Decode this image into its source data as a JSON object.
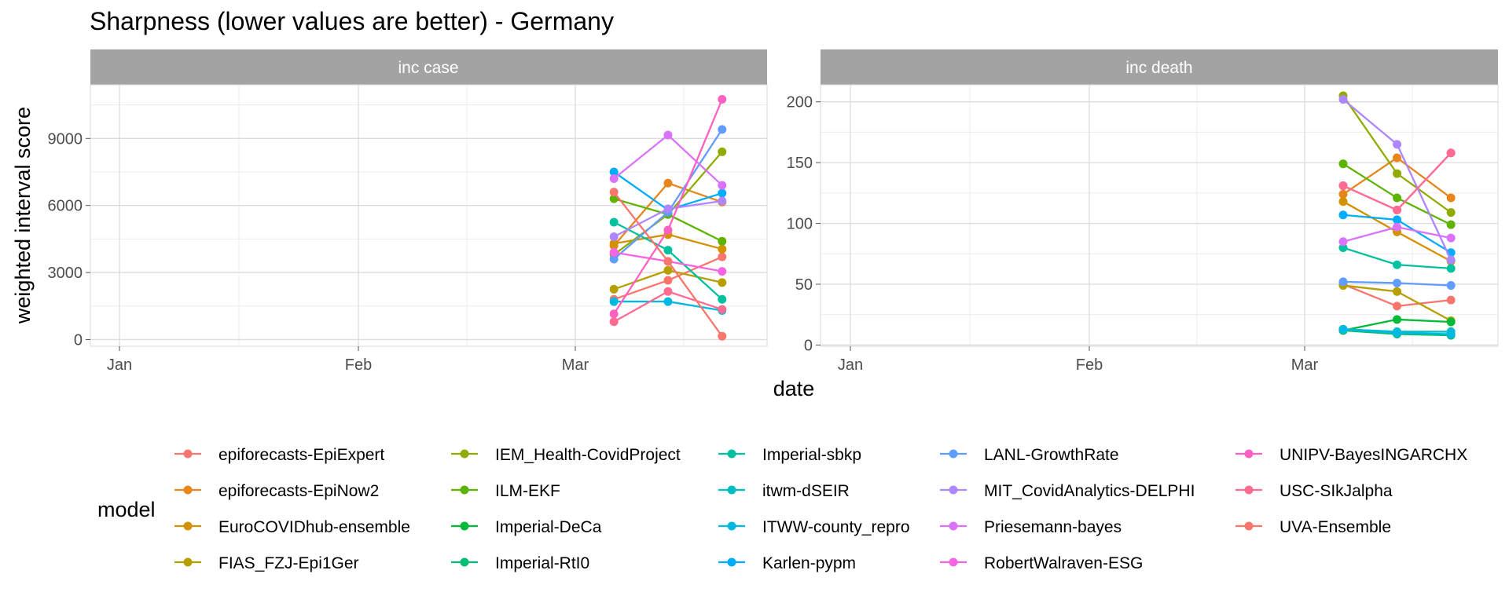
{
  "chart_data": {
    "type": "line",
    "title": "Sharpness (lower values are better) - Germany",
    "xlabel": "date",
    "ylabel": "weighted interval score",
    "x_ticks": [
      "Jan",
      "Feb",
      "Mar"
    ],
    "x_dates": [
      "2021-03-06",
      "2021-03-13",
      "2021-03-20"
    ],
    "legend_title": "model",
    "legend_position": "bottom",
    "grid": true,
    "models": [
      {
        "name": "epiforecasts-EpiExpert",
        "color": "#F8766D"
      },
      {
        "name": "epiforecasts-EpiNow2",
        "color": "#E7861B"
      },
      {
        "name": "EuroCOVIDhub-ensemble",
        "color": "#D39200"
      },
      {
        "name": "FIAS_FZJ-Epi1Ger",
        "color": "#B79F00"
      },
      {
        "name": "IEM_Health-CovidProject",
        "color": "#93AA00"
      },
      {
        "name": "ILM-EKF",
        "color": "#5EB300"
      },
      {
        "name": "Imperial-DeCa",
        "color": "#00BA38"
      },
      {
        "name": "Imperial-RtI0",
        "color": "#00BF74"
      },
      {
        "name": "Imperial-sbkp",
        "color": "#00C19F"
      },
      {
        "name": "itwm-dSEIR",
        "color": "#00BFC4"
      },
      {
        "name": "ITWW-county_repro",
        "color": "#00B9E3"
      },
      {
        "name": "Karlen-pypm",
        "color": "#00ADFA"
      },
      {
        "name": "LANL-GrowthRate",
        "color": "#619CFF"
      },
      {
        "name": "MIT_CovidAnalytics-DELPHI",
        "color": "#AE87FF"
      },
      {
        "name": "Priesemann-bayes",
        "color": "#DB72FB"
      },
      {
        "name": "RobertWalraven-ESG",
        "color": "#F564E3"
      },
      {
        "name": "UNIPV-BayesINGARCHX",
        "color": "#FF61C3"
      },
      {
        "name": "USC-SIkJalpha",
        "color": "#FF6C91"
      },
      {
        "name": "UVA-Ensemble",
        "color": "#F8766D"
      }
    ],
    "panels": [
      {
        "label": "inc case",
        "ylim": [
          -300,
          11400
        ],
        "y_ticks": [
          0,
          3000,
          6000,
          9000
        ],
        "y_tick_labels": [
          "0",
          "3000",
          "6000",
          "9000"
        ],
        "series": [
          {
            "model": "epiforecasts-EpiExpert",
            "values": [
              1800,
              2650,
              3700
            ]
          },
          {
            "model": "epiforecasts-EpiNow2",
            "values": [
              4200,
              7000,
              6150
            ]
          },
          {
            "model": "EuroCOVIDhub-ensemble",
            "values": [
              4300,
              4700,
              4050
            ]
          },
          {
            "model": "FIAS_FZJ-Epi1Ger",
            "values": [
              2250,
              3100,
              2550
            ]
          },
          {
            "model": "IEM_Health-CovidProject",
            "values": [
              3800,
              5600,
              8400
            ]
          },
          {
            "model": "ILM-EKF",
            "values": [
              6300,
              5600,
              4400
            ]
          },
          {
            "model": "Imperial-sbkp",
            "values": [
              5250,
              4000,
              1800
            ]
          },
          {
            "model": "ITWW-county_repro",
            "values": [
              1700,
              1700,
              1300
            ]
          },
          {
            "model": "Karlen-pypm",
            "values": [
              7500,
              5800,
              6550
            ]
          },
          {
            "model": "LANL-GrowthRate",
            "values": [
              3600,
              5700,
              9400
            ]
          },
          {
            "model": "MIT_CovidAnalytics-DELPHI",
            "values": [
              4600,
              5850,
              6200
            ]
          },
          {
            "model": "Priesemann-bayes",
            "values": [
              7200,
              9150,
              6900
            ]
          },
          {
            "model": "RobertWalraven-ESG",
            "values": [
              3900,
              3500,
              3050
            ]
          },
          {
            "model": "UNIPV-BayesINGARCHX",
            "values": [
              1150,
              4900,
              10750
            ]
          },
          {
            "model": "USC-SIkJalpha",
            "values": [
              800,
              2150,
              1350
            ]
          },
          {
            "model": "UVA-Ensemble",
            "values": [
              6600,
              3500,
              150
            ]
          }
        ]
      },
      {
        "label": "inc death",
        "ylim": [
          -1,
          214
        ],
        "y_ticks": [
          0,
          50,
          100,
          150,
          200
        ],
        "y_tick_labels": [
          "0",
          "50",
          "100",
          "150",
          "200"
        ],
        "series": [
          {
            "model": "epiforecasts-EpiExpert",
            "values": [
              50,
              32,
              37
            ]
          },
          {
            "model": "epiforecasts-EpiNow2",
            "values": [
              124,
              154,
              121
            ]
          },
          {
            "model": "EuroCOVIDhub-ensemble",
            "values": [
              118,
              93,
              69
            ]
          },
          {
            "model": "FIAS_FZJ-Epi1Ger",
            "values": [
              49,
              44,
              20
            ]
          },
          {
            "model": "IEM_Health-CovidProject",
            "values": [
              205,
              141,
              109
            ]
          },
          {
            "model": "ILM-EKF",
            "values": [
              149,
              121,
              99
            ]
          },
          {
            "model": "Imperial-DeCa",
            "values": [
              12,
              21,
              19
            ]
          },
          {
            "model": "Imperial-RtI0",
            "values": [
              12,
              9,
              8
            ]
          },
          {
            "model": "Imperial-sbkp",
            "values": [
              80,
              66,
              63
            ]
          },
          {
            "model": "itwm-dSEIR",
            "values": [
              13,
              11,
              11
            ]
          },
          {
            "model": "ITWW-county_repro",
            "values": [
              13,
              10,
              9
            ]
          },
          {
            "model": "Karlen-pypm",
            "values": [
              107,
              103,
              76
            ]
          },
          {
            "model": "LANL-GrowthRate",
            "values": [
              52,
              51,
              49
            ]
          },
          {
            "model": "MIT_CovidAnalytics-DELPHI",
            "values": [
              202,
              165,
              70
            ]
          },
          {
            "model": "Priesemann-bayes",
            "values": [
              85,
              97,
              88
            ]
          },
          {
            "model": "UNIPV-BayesINGARCHX",
            "values": [
              131,
              111,
              158
            ]
          },
          {
            "model": "USC-SIkJalpha",
            "values": [
              131,
              111,
              158
            ]
          }
        ]
      }
    ]
  }
}
